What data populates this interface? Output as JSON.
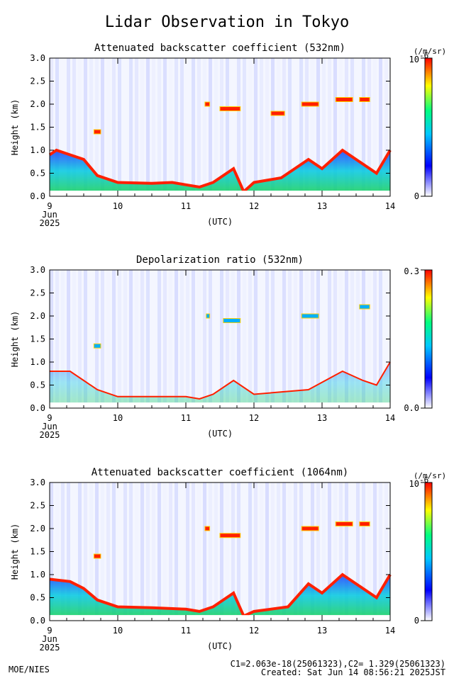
{
  "title": "Lidar Observation in Tokyo",
  "footer": {
    "credit": "MOE/NIES",
    "constants": "C1=2.063e-18(25061323),C2= 1.329(25061323)",
    "created": "Created: Sat Jun 14 08:56:21 2025JST"
  },
  "chart_data": [
    {
      "type": "heatmap",
      "title": "Attenuated backscatter coefficient (532nm)",
      "ylabel": "Height (km)",
      "xlabel": "(UTC)",
      "ylim": [
        0,
        3
      ],
      "xlim": [
        9,
        14
      ],
      "x_ticks": [
        "9",
        "10",
        "11",
        "12",
        "13",
        "14"
      ],
      "x_tick_sub": [
        "Jun",
        "2025"
      ],
      "y_ticks": [
        "0.0",
        "0.5",
        "1.0",
        "1.5",
        "2.0",
        "2.5",
        "3.0"
      ],
      "colorbar": {
        "max_label": "10",
        "exp": "-6",
        "min_label": "0",
        "unit": "(/m/sr)"
      },
      "colormap": [
        "#ffffff",
        "#0000ff",
        "#00c8ff",
        "#00ff80",
        "#ffff00",
        "#ff0000"
      ],
      "boundary_layer": [
        [
          9.0,
          0.9
        ],
        [
          9.1,
          1.0
        ],
        [
          9.3,
          0.9
        ],
        [
          9.5,
          0.8
        ],
        [
          9.7,
          0.45
        ],
        [
          10.0,
          0.3
        ],
        [
          10.5,
          0.28
        ],
        [
          10.8,
          0.3
        ],
        [
          11.0,
          0.25
        ],
        [
          11.2,
          0.2
        ],
        [
          11.4,
          0.3
        ],
        [
          11.7,
          0.6
        ],
        [
          11.85,
          0.1
        ],
        [
          12.0,
          0.3
        ],
        [
          12.4,
          0.4
        ],
        [
          12.8,
          0.8
        ],
        [
          13.0,
          0.6
        ],
        [
          13.3,
          1.0
        ],
        [
          13.6,
          0.7
        ],
        [
          13.8,
          0.5
        ],
        [
          14.0,
          1.0
        ]
      ],
      "cloud_layers": [
        {
          "x_start": 9.65,
          "x_end": 9.75,
          "height": 1.4
        },
        {
          "x_start": 11.28,
          "x_end": 11.35,
          "height": 2.0
        },
        {
          "x_start": 11.5,
          "x_end": 11.8,
          "height": 1.9
        },
        {
          "x_start": 12.25,
          "x_end": 12.45,
          "height": 1.8
        },
        {
          "x_start": 12.7,
          "x_end": 12.95,
          "height": 2.0
        },
        {
          "x_start": 13.2,
          "x_end": 13.45,
          "height": 2.1
        },
        {
          "x_start": 13.55,
          "x_end": 13.7,
          "height": 2.1
        }
      ]
    },
    {
      "type": "heatmap",
      "title": "Depolarization ratio (532nm)",
      "ylabel": "Height (km)",
      "xlabel": "(UTC)",
      "ylim": [
        0,
        3
      ],
      "xlim": [
        9,
        14
      ],
      "x_ticks": [
        "9",
        "10",
        "11",
        "12",
        "13",
        "14"
      ],
      "x_tick_sub": [
        "Jun",
        "2025"
      ],
      "y_ticks": [
        "0.0",
        "0.5",
        "1.0",
        "1.5",
        "2.0",
        "2.5",
        "3.0"
      ],
      "colorbar": {
        "max_label": "0.3",
        "exp": "",
        "min_label": "0.0",
        "unit": ""
      },
      "colormap": [
        "#ffffff",
        "#0000ff",
        "#00c8ff",
        "#00ff80",
        "#ffff00",
        "#ff0000"
      ],
      "boundary_layer": [
        [
          9.0,
          0.8
        ],
        [
          9.3,
          0.8
        ],
        [
          9.5,
          0.6
        ],
        [
          9.7,
          0.4
        ],
        [
          10.0,
          0.25
        ],
        [
          10.5,
          0.25
        ],
        [
          11.0,
          0.25
        ],
        [
          11.2,
          0.2
        ],
        [
          11.4,
          0.3
        ],
        [
          11.7,
          0.6
        ],
        [
          12.0,
          0.3
        ],
        [
          12.8,
          0.4
        ],
        [
          13.3,
          0.8
        ],
        [
          13.6,
          0.6
        ],
        [
          13.8,
          0.5
        ],
        [
          14.0,
          1.0
        ]
      ],
      "cloud_layers": [
        {
          "x_start": 9.65,
          "x_end": 9.75,
          "height": 1.35
        },
        {
          "x_start": 11.3,
          "x_end": 11.35,
          "height": 2.0
        },
        {
          "x_start": 11.55,
          "x_end": 11.8,
          "height": 1.9
        },
        {
          "x_start": 12.7,
          "x_end": 12.95,
          "height": 2.0
        },
        {
          "x_start": 13.55,
          "x_end": 13.7,
          "height": 2.2
        }
      ]
    },
    {
      "type": "heatmap",
      "title": "Attenuated backscatter coefficient (1064nm)",
      "ylabel": "Height (km)",
      "xlabel": "(UTC)",
      "ylim": [
        0,
        3
      ],
      "xlim": [
        9,
        14
      ],
      "x_ticks": [
        "9",
        "10",
        "11",
        "12",
        "13",
        "14"
      ],
      "x_tick_sub": [
        "Jun",
        "2025"
      ],
      "y_ticks": [
        "0.0",
        "0.5",
        "1.0",
        "1.5",
        "2.0",
        "2.5",
        "3.0"
      ],
      "colorbar": {
        "max_label": "10",
        "exp": "-6",
        "min_label": "0",
        "unit": "(/m/sr)"
      },
      "colormap": [
        "#ffffff",
        "#0000ff",
        "#00c8ff",
        "#00ff80",
        "#ffff00",
        "#ff0000"
      ],
      "boundary_layer": [
        [
          9.0,
          0.9
        ],
        [
          9.3,
          0.85
        ],
        [
          9.5,
          0.7
        ],
        [
          9.7,
          0.45
        ],
        [
          10.0,
          0.3
        ],
        [
          10.5,
          0.28
        ],
        [
          11.0,
          0.25
        ],
        [
          11.2,
          0.2
        ],
        [
          11.4,
          0.3
        ],
        [
          11.7,
          0.6
        ],
        [
          11.85,
          0.1
        ],
        [
          12.0,
          0.2
        ],
        [
          12.5,
          0.3
        ],
        [
          12.8,
          0.8
        ],
        [
          13.0,
          0.6
        ],
        [
          13.3,
          1.0
        ],
        [
          13.6,
          0.7
        ],
        [
          13.8,
          0.5
        ],
        [
          14.0,
          1.0
        ]
      ],
      "cloud_layers": [
        {
          "x_start": 9.65,
          "x_end": 9.75,
          "height": 1.4
        },
        {
          "x_start": 11.28,
          "x_end": 11.35,
          "height": 2.0
        },
        {
          "x_start": 11.5,
          "x_end": 11.8,
          "height": 1.85
        },
        {
          "x_start": 12.7,
          "x_end": 12.95,
          "height": 2.0
        },
        {
          "x_start": 13.2,
          "x_end": 13.45,
          "height": 2.1
        },
        {
          "x_start": 13.55,
          "x_end": 13.7,
          "height": 2.1
        }
      ]
    }
  ]
}
